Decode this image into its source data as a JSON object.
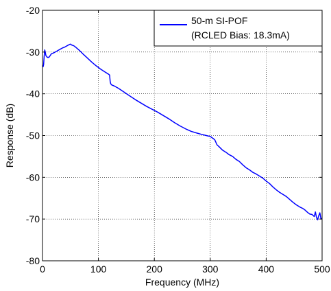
{
  "chart_data": {
    "type": "line",
    "title": "",
    "xlabel": "Frequency (MHz)",
    "ylabel": "Response (dB)",
    "xlim": [
      0,
      500
    ],
    "ylim": [
      -80,
      -20
    ],
    "xticks": [
      0,
      100,
      200,
      300,
      400,
      500
    ],
    "yticks": [
      -80,
      -70,
      -60,
      -50,
      -40,
      -30,
      -20
    ],
    "xtick_labels": [
      "0",
      "100",
      "200",
      "300",
      "400",
      "500"
    ],
    "ytick_labels": [
      "-80",
      "-70",
      "-60",
      "-50",
      "-40",
      "-30",
      "-20"
    ],
    "grid": true,
    "legend_position": "top-right",
    "legend_lines": [
      "50-m SI-POF",
      "(RCLED Bias: 18.3mA)"
    ],
    "series": [
      {
        "name": "50-m SI-POF (RCLED Bias: 18.3mA)",
        "color": "#0000ff",
        "x": [
          1,
          2,
          3,
          4,
          5,
          6,
          8,
          10,
          12,
          14,
          16,
          18,
          20,
          24,
          28,
          32,
          36,
          40,
          44,
          48,
          50,
          52,
          56,
          60,
          66,
          72,
          80,
          88,
          96,
          104,
          112,
          118,
          120,
          121,
          122,
          124,
          128,
          136,
          146,
          156,
          166,
          176,
          186,
          196,
          206,
          216,
          226,
          236,
          246,
          256,
          266,
          276,
          284,
          290,
          296,
          300,
          304,
          308,
          312,
          316,
          322,
          328,
          334,
          340,
          346,
          352,
          358,
          364,
          370,
          376,
          382,
          388,
          394,
          400,
          406,
          412,
          418,
          424,
          430,
          436,
          442,
          448,
          454,
          460,
          466,
          470,
          474,
          478,
          482,
          486,
          488,
          490,
          492,
          494,
          496,
          498,
          500
        ],
        "y": [
          -33.6,
          -33.0,
          -31.0,
          -29.5,
          -30.0,
          -30.8,
          -31.2,
          -31.3,
          -31.2,
          -30.8,
          -30.4,
          -30.3,
          -30.2,
          -29.9,
          -29.6,
          -29.3,
          -29.0,
          -28.8,
          -28.5,
          -28.2,
          -28.1,
          -28.3,
          -28.5,
          -28.9,
          -29.6,
          -30.4,
          -31.4,
          -32.4,
          -33.3,
          -34.1,
          -34.8,
          -35.3,
          -35.5,
          -37.0,
          -37.6,
          -37.9,
          -38.1,
          -38.7,
          -39.6,
          -40.5,
          -41.4,
          -42.2,
          -43.0,
          -43.7,
          -44.4,
          -45.2,
          -46.0,
          -46.9,
          -47.7,
          -48.4,
          -49.0,
          -49.4,
          -49.7,
          -49.9,
          -50.1,
          -50.2,
          -50.6,
          -51.0,
          -52.2,
          -52.7,
          -53.5,
          -54.0,
          -54.6,
          -55.0,
          -55.7,
          -56.2,
          -57.0,
          -57.7,
          -58.2,
          -58.8,
          -59.2,
          -59.7,
          -60.2,
          -60.9,
          -61.5,
          -62.3,
          -63.0,
          -63.6,
          -64.1,
          -64.6,
          -65.3,
          -66.0,
          -66.6,
          -67.1,
          -67.5,
          -67.9,
          -68.4,
          -68.8,
          -68.9,
          -69.4,
          -68.3,
          -69.6,
          -70.2,
          -69.2,
          -68.5,
          -70.0,
          -69.8
        ]
      }
    ]
  }
}
